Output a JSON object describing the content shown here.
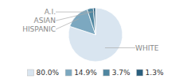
{
  "chart_data": {
    "type": "pie",
    "categories": [
      "WHITE",
      "HISPANIC",
      "ASIAN",
      "A.I."
    ],
    "values": [
      80.0,
      14.9,
      3.7,
      1.3
    ],
    "value_labels": [
      "80.0%",
      "14.9%",
      "3.7%",
      "1.3%"
    ],
    "colors": [
      "#d9e5f0",
      "#7ca8c0",
      "#4f86a0",
      "#2a5f7e"
    ],
    "legend": "bottom"
  }
}
